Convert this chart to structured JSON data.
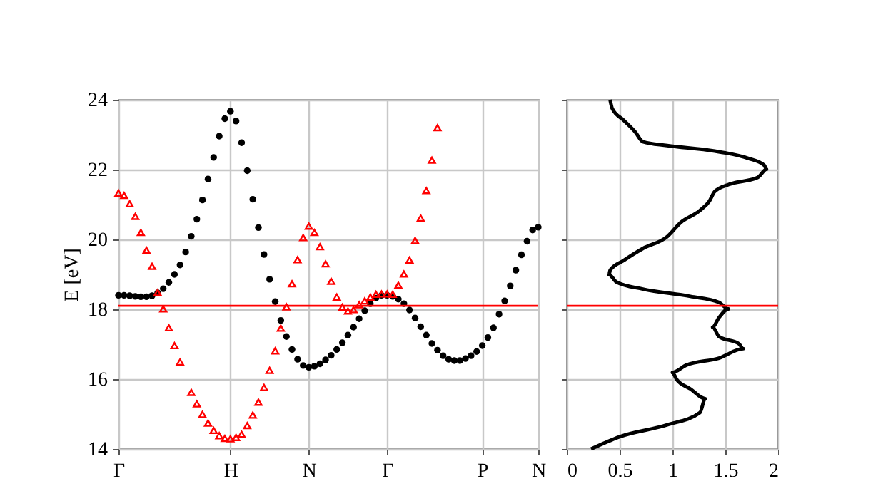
{
  "chart_data": [
    {
      "type": "scatter",
      "ylabel": "E [eV]",
      "categories": [
        "Γ",
        null,
        null,
        null,
        null,
        null,
        null,
        null,
        null,
        null,
        null,
        null,
        null,
        null,
        null,
        null,
        null,
        null,
        null,
        null,
        "H",
        null,
        null,
        null,
        null,
        null,
        null,
        null,
        null,
        null,
        null,
        null,
        null,
        null,
        "N",
        null,
        null,
        null,
        null,
        null,
        null,
        null,
        null,
        null,
        null,
        null,
        null,
        null,
        "Γ",
        null,
        null,
        null,
        null,
        null,
        null,
        null,
        null,
        null,
        null,
        null,
        null,
        null,
        null,
        null,
        null,
        "P",
        null,
        null,
        null,
        null,
        null,
        null,
        null,
        null,
        null,
        "N"
      ],
      "ylim": [
        14,
        24
      ],
      "yticks": [
        14,
        16,
        18,
        20,
        22,
        24
      ],
      "grid": true,
      "legend": false,
      "series": [
        {
          "color": "#000000",
          "marker": "circle",
          "values": [
            18.4,
            18.4,
            18.39,
            18.37,
            18.36,
            18.36,
            18.39,
            18.47,
            18.59,
            18.77,
            19.0,
            19.27,
            19.64,
            20.09,
            20.58,
            21.13,
            21.73,
            22.35,
            22.96,
            23.46,
            23.67,
            23.39,
            22.77,
            21.97,
            21.15,
            20.34,
            19.57,
            18.86,
            18.22,
            17.68,
            17.22,
            16.85,
            16.57,
            16.39,
            16.34,
            16.37,
            16.44,
            16.55,
            16.68,
            16.85,
            17.04,
            17.26,
            17.49,
            17.73,
            17.96,
            18.16,
            18.32,
            18.4,
            18.4,
            18.37,
            18.29,
            18.16,
            17.98,
            17.75,
            17.5,
            17.26,
            17.02,
            16.83,
            16.67,
            16.57,
            16.53,
            16.53,
            16.59,
            16.67,
            16.79,
            16.96,
            17.19,
            17.47,
            17.86,
            18.24,
            18.67,
            19.12,
            19.56,
            19.95,
            20.27,
            20.35
          ]
        },
        {
          "color": "#ff0000",
          "marker": "triangle",
          "values": [
            21.33,
            21.26,
            21.02,
            20.66,
            20.2,
            19.69,
            19.23,
            18.48,
            18.01,
            17.47,
            16.96,
            16.49,
            null,
            15.62,
            15.29,
            14.99,
            14.74,
            14.53,
            14.38,
            14.3,
            14.29,
            14.33,
            14.42,
            14.67,
            14.97,
            15.34,
            15.76,
            16.25,
            16.81,
            17.46,
            18.07,
            18.73,
            19.42,
            20.05,
            20.38,
            20.2,
            19.79,
            19.3,
            18.8,
            18.35,
            18.06,
            17.95,
            17.99,
            18.13,
            18.24,
            18.35,
            18.43,
            18.44,
            18.44,
            18.43,
            18.69,
            19.01,
            19.41,
            19.97,
            20.61,
            21.4,
            22.27,
            23.2,
            null,
            null,
            null,
            null,
            null,
            null,
            null,
            null,
            null,
            null,
            null,
            null,
            null,
            null,
            null,
            null,
            null,
            null
          ]
        }
      ],
      "ref_lines": [
        {
          "axis": "y",
          "value": 18.1,
          "color": "#ff0000"
        }
      ]
    },
    {
      "type": "line",
      "xlim": [
        0,
        2
      ],
      "xticks": [
        0,
        0.5,
        1,
        1.5,
        2
      ],
      "ylim": [
        14,
        24
      ],
      "yticks": [
        14,
        16,
        18,
        20,
        22,
        24
      ],
      "tick_labels": "x",
      "grid": true,
      "legend": false,
      "series": [
        {
          "color": "#000000",
          "x": [
            0.41,
            0.43,
            0.54,
            0.65,
            0.72,
            0.95,
            1.4,
            1.72,
            1.87,
            1.89,
            1.81,
            1.53,
            1.4,
            1.35,
            1.26,
            1.08,
            0.95,
            0.72,
            0.54,
            0.41,
            0.4,
            0.47,
            0.72,
            1.17,
            1.44,
            1.53,
            1.44,
            1.38,
            1.44,
            1.63,
            1.67,
            1.44,
            1.13,
            1.0,
            1.04,
            1.17,
            1.31,
            1.26,
            0.95,
            0.5,
            0.23
          ],
          "values": [
            24,
            23.75,
            23.41,
            23.07,
            22.8,
            22.69,
            22.53,
            22.32,
            22.12,
            22.01,
            21.78,
            21.57,
            21.37,
            21.1,
            20.83,
            20.49,
            20.08,
            19.74,
            19.4,
            19.12,
            18.99,
            18.78,
            18.58,
            18.37,
            18.2,
            18.01,
            17.76,
            17.49,
            17.22,
            17.01,
            16.87,
            16.6,
            16.4,
            16.19,
            15.99,
            15.72,
            15.44,
            15.04,
            14.69,
            14.35,
            14.0
          ]
        }
      ],
      "ref_lines": [
        {
          "axis": "y",
          "value": 18.1,
          "color": "#ff0000"
        }
      ]
    }
  ]
}
